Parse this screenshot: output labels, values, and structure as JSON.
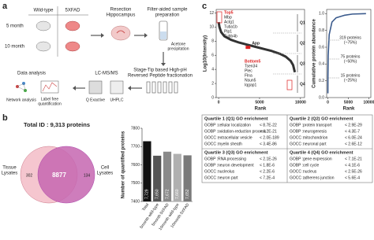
{
  "panel_labels": [
    "a",
    "b",
    "c"
  ],
  "workflow": {
    "genotypes": [
      "Wild-type",
      "5XFAD"
    ],
    "ages": [
      "5 month",
      "10 month"
    ],
    "resection": [
      "Resection",
      "Hippocampus"
    ],
    "fasp": [
      "Filter-aided sample",
      "preparation"
    ],
    "acetone": [
      "Acetone",
      "precipitation"
    ],
    "fractionation": [
      "Stage-Tip based High-pH",
      "Reversed Peptide fractionation"
    ],
    "lcms": "LC-MS/MS",
    "analysis": "Data analysis",
    "tools": [
      [
        "Network analysis"
      ],
      [
        "Label free",
        "quantification"
      ],
      [
        "Q Exactive"
      ],
      [
        "UHPLC"
      ]
    ]
  },
  "venn": {
    "title": "Total ID : 9,313 proteins",
    "left_label": [
      "Tissue",
      "Lysates"
    ],
    "right_label": [
      "Cell",
      "Lysates"
    ],
    "left_only": 302,
    "both": 8877,
    "right_only": 134
  },
  "chart_data": [
    {
      "type": "bar",
      "ylabel": "Number of quantified proteins",
      "categories": [
        "Total",
        "5month wild-type",
        "5month 5XFAD",
        "10month wild-type",
        "10month 5XFAD"
      ],
      "values": [
        7729,
        7650,
        7672,
        7660,
        7652
      ],
      "value_labels": [
        "7,729",
        "7,650",
        "7,672",
        "7,660",
        "7,652"
      ],
      "colors": [
        "#111111",
        "#555555",
        "#8a8a8a",
        "#b0b0b0",
        "#7a7a7a"
      ],
      "ylim": [
        7400,
        7800
      ],
      "yticks": [
        7400,
        7500,
        7600,
        7700,
        7800
      ]
    },
    {
      "type": "line",
      "xlabel": "Rank",
      "ylabel": "Log10(Intensity)",
      "color": "#333333",
      "x": [
        1,
        100,
        300,
        700,
        1500,
        2500,
        3500,
        4500,
        5500,
        6500,
        7500,
        8200,
        8800,
        9100,
        9313
      ],
      "values": [
        10.7,
        10.0,
        9.3,
        8.7,
        8.2,
        7.8,
        7.5,
        7.2,
        6.9,
        6.6,
        6.2,
        5.8,
        5.2,
        4.6,
        3.6
      ],
      "xlim": [
        -300,
        10500
      ],
      "xticks": [
        0,
        5000,
        10000
      ],
      "ylim": [
        0,
        12.5
      ],
      "yticks": [
        0,
        2,
        4,
        6,
        8,
        10,
        12
      ],
      "top_label": "Top5",
      "top_proteins": [
        "Mbp",
        "Actg1",
        "Tuba1b",
        "Plp1",
        "Tubb4b"
      ],
      "marker_label": "App",
      "bottom_label": "Bottom5",
      "bottom_proteins": [
        "Tsen34",
        "Plec",
        "Flna",
        "Nsun5",
        "Iqgap1"
      ],
      "quartiles": [
        "Q1",
        "Q2",
        "Q3",
        "Q4"
      ]
    },
    {
      "type": "line",
      "xlabel": "Rank",
      "ylabel": "Cumulative protein abundance",
      "color": "#3a5a8c",
      "x": [
        1,
        15,
        75,
        319,
        1000,
        2000,
        4000,
        6000,
        9313
      ],
      "values": [
        0.05,
        0.25,
        0.5,
        0.75,
        0.9,
        0.95,
        0.98,
        0.995,
        1.0
      ],
      "xlim": [
        -300,
        10500
      ],
      "xticks": [
        0,
        5000,
        10000
      ],
      "ylim": [
        0,
        1.05
      ],
      "yticks": [
        {
          "value": 0,
          "label": "0.0"
        },
        {
          "value": 0.2,
          "label": "0.2"
        },
        {
          "value": 0.4,
          "label": "0.4"
        },
        {
          "value": 0.6,
          "label": "0.6"
        },
        {
          "value": 0.8,
          "label": "0.8"
        },
        {
          "value": 1,
          "label": "1.0"
        }
      ],
      "annotations": [
        [
          "319 proteins",
          "(~75%)"
        ],
        [
          "75 proteins",
          "(~50%)"
        ],
        [
          "15 proteins",
          "(~25%)"
        ]
      ]
    }
  ],
  "go_table": {
    "blocks": [
      {
        "title": "Quartile 1 (Q1) GO enrichment",
        "rows": [
          [
            "GOBP :",
            "cellular localization",
            "< 8.7E-22"
          ],
          [
            "GOBP :",
            "oxidation-reduction process",
            "< 4.2E-21"
          ],
          [
            "GOCC :",
            "extracellular vesicle",
            "< 2.0E-189"
          ],
          [
            "GOCC :",
            "myelin sheath",
            "< 3.4E-86"
          ]
        ]
      },
      {
        "title": "Quartile 2 (Q2) GO enrichment",
        "rows": [
          [
            "GOBP :",
            "protein transport",
            "< 2.9E-29"
          ],
          [
            "GOBP :",
            "neurogenesis",
            "< 4.3E-7"
          ],
          [
            "GOCC :",
            "mitochondrion",
            "< 6.0E-24"
          ],
          [
            "GOCC :",
            "neuronal part",
            "< 2.6E-12"
          ]
        ]
      },
      {
        "title": "Quartile 3 (Q3) GO enrichment",
        "rows": [
          [
            "GOBP :",
            "RNA processing",
            "< 2.1E-26"
          ],
          [
            "GOBP :",
            "neuron development",
            "< 1.8E-6"
          ],
          [
            "GOCC :",
            "nucleolus",
            "< 2.2E-6"
          ],
          [
            "GOCC :",
            "neuron part",
            "< 7.2E-4"
          ]
        ]
      },
      {
        "title": "Quartile 4 (Q4) GO enrichment",
        "rows": [
          [
            "GOBP :",
            "gene expression",
            "< 7.1E-21"
          ],
          [
            "GOBP :",
            "cell cycle",
            "< 4.1E-6"
          ],
          [
            "GOCC :",
            "nucleus",
            "< 2.5E-26"
          ],
          [
            "GOCC :",
            "adherens junction",
            "< 5.6E-4"
          ]
        ]
      }
    ]
  }
}
